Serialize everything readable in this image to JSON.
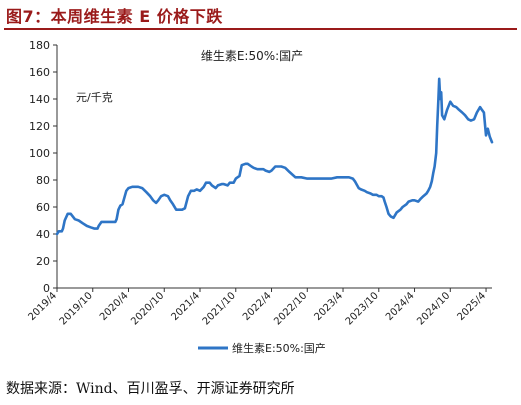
{
  "figure": {
    "title": "图7：本周维生素 E 价格下跌",
    "source": "数据来源：Wind、百川盈孚、开源证券研究所"
  },
  "chart_data": {
    "type": "line",
    "title": "维生素E:50%:国产",
    "unit_label": "元/千克",
    "xlabel": "",
    "ylabel": "",
    "ylim": [
      0,
      180
    ],
    "xlim": [
      "2019-04",
      "2025-05"
    ],
    "grid": false,
    "legend_position": "bottom",
    "y_ticks": [
      0,
      20,
      40,
      60,
      80,
      100,
      120,
      140,
      160,
      180
    ],
    "x_ticks": [
      "2019/4",
      "2019/10",
      "2020/4",
      "2020/10",
      "2021/4",
      "2021/10",
      "2022/4",
      "2022/10",
      "2023/4",
      "2023/10",
      "2024/4",
      "2024/10",
      "2025/4"
    ],
    "series": [
      {
        "name": "维生素E:50%:国产",
        "color": "#2e75c6",
        "x": [
          "2019-04-01",
          "2019-04-10",
          "2019-04-25",
          "2019-05-01",
          "2019-05-10",
          "2019-05-25",
          "2019-06-01",
          "2019-06-10",
          "2019-07-01",
          "2019-07-20",
          "2019-08-10",
          "2019-09-01",
          "2019-09-20",
          "2019-10-10",
          "2019-10-25",
          "2019-11-01",
          "2019-11-15",
          "2019-12-01",
          "2019-12-20",
          "2020-01-10",
          "2020-01-25",
          "2020-02-01",
          "2020-02-10",
          "2020-02-20",
          "2020-03-01",
          "2020-03-20",
          "2020-04-01",
          "2020-04-20",
          "2020-05-01",
          "2020-05-20",
          "2020-06-10",
          "2020-07-01",
          "2020-07-20",
          "2020-08-05",
          "2020-08-20",
          "2020-09-01",
          "2020-09-15",
          "2020-10-01",
          "2020-10-20",
          "2020-11-01",
          "2020-11-15",
          "2020-12-01",
          "2020-12-20",
          "2021-01-01",
          "2021-01-15",
          "2021-02-01",
          "2021-02-15",
          "2021-03-01",
          "2021-03-15",
          "2021-04-01",
          "2021-04-20",
          "2021-05-01",
          "2021-05-20",
          "2021-06-01",
          "2021-06-20",
          "2021-07-01",
          "2021-07-20",
          "2021-08-01",
          "2021-08-20",
          "2021-09-01",
          "2021-09-20",
          "2021-10-01",
          "2021-10-20",
          "2021-11-01",
          "2021-11-20",
          "2021-12-01",
          "2021-12-20",
          "2022-01-01",
          "2022-01-20",
          "2022-02-01",
          "2022-02-20",
          "2022-03-01",
          "2022-03-20",
          "2022-04-01",
          "2022-04-20",
          "2022-05-01",
          "2022-05-20",
          "2022-06-10",
          "2022-07-01",
          "2022-08-01",
          "2022-09-01",
          "2022-10-01",
          "2022-11-01",
          "2022-12-01",
          "2023-01-01",
          "2023-02-01",
          "2023-03-01",
          "2023-04-01",
          "2023-05-01",
          "2023-05-20",
          "2023-06-01",
          "2023-06-20",
          "2023-07-01",
          "2023-07-20",
          "2023-08-01",
          "2023-08-20",
          "2023-09-01",
          "2023-09-20",
          "2023-10-01",
          "2023-10-15",
          "2023-10-25",
          "2023-11-01",
          "2023-11-10",
          "2023-11-20",
          "2023-12-01",
          "2023-12-15",
          "2024-01-01",
          "2024-01-20",
          "2024-02-01",
          "2024-02-20",
          "2024-03-01",
          "2024-03-20",
          "2024-04-01",
          "2024-04-20",
          "2024-05-01",
          "2024-05-15",
          "2024-06-01",
          "2024-06-10",
          "2024-06-20",
          "2024-06-28",
          "2024-07-05",
          "2024-07-12",
          "2024-07-20",
          "2024-07-25",
          "2024-08-01",
          "2024-08-05",
          "2024-08-10",
          "2024-08-15",
          "2024-08-20",
          "2024-09-01",
          "2024-09-15",
          "2024-10-01",
          "2024-10-15",
          "2024-11-01",
          "2024-11-15",
          "2024-12-01",
          "2024-12-15",
          "2025-01-01",
          "2025-01-15",
          "2025-02-01",
          "2025-02-15",
          "2025-03-01",
          "2025-03-10",
          "2025-03-20",
          "2025-04-01",
          "2025-04-10",
          "2025-04-20",
          "2025-05-01"
        ],
        "values": [
          40,
          42,
          42,
          44,
          50,
          55,
          55,
          55,
          51,
          50,
          48,
          46,
          45,
          44,
          44,
          46,
          49,
          49,
          49,
          49,
          49,
          51,
          58,
          61,
          62,
          72,
          74,
          75,
          75,
          75,
          74,
          71,
          68,
          65,
          63,
          65,
          68,
          69,
          68,
          65,
          62,
          58,
          58,
          58,
          59,
          68,
          72,
          72,
          73,
          72,
          75,
          78,
          78,
          76,
          74,
          76,
          77,
          77,
          76,
          78,
          78,
          81,
          83,
          91,
          92,
          92,
          90,
          89,
          88,
          88,
          88,
          87,
          86,
          87,
          90,
          90,
          90,
          89,
          86,
          82,
          82,
          81,
          81,
          81,
          81,
          81,
          82,
          82,
          82,
          81,
          79,
          74,
          73,
          72,
          71,
          70,
          69,
          69,
          68,
          68,
          67,
          64,
          60,
          55,
          53,
          52,
          56,
          58,
          60,
          62,
          64,
          65,
          65,
          64,
          66,
          68,
          70,
          72,
          75,
          79,
          85,
          90,
          100,
          120,
          140,
          155,
          140,
          145,
          128,
          125,
          132,
          138,
          135,
          134,
          132,
          130,
          128,
          125,
          124,
          125,
          130,
          134,
          132,
          130,
          113,
          118,
          112,
          108
        ]
      }
    ]
  }
}
